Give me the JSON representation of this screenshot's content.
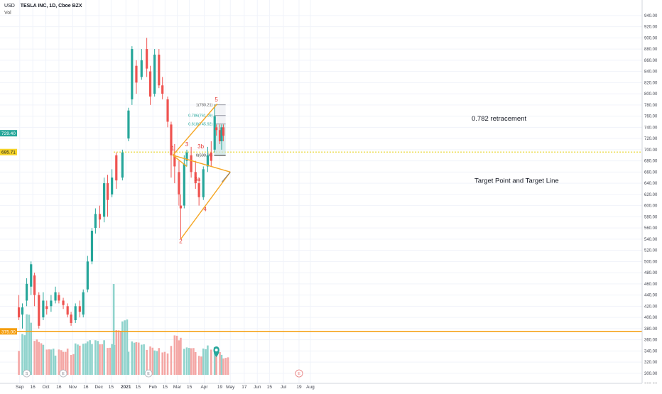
{
  "header": {
    "currency": "USD",
    "symbol": "TESLA INC, 1D, Cboe BZX",
    "vol_label": "Vol"
  },
  "annotations": {
    "retracement": "0.782 retracement",
    "target": "Target Point and Target Line",
    "fib_1": "1(780.21)",
    "fib_0786": "0.786(761.09)",
    "fib_0618": "0.618(745.92)",
    "fib_0": "0(690.00)",
    "wave_labels": [
      "1",
      "2",
      "3",
      "3a",
      "3b",
      "4",
      "5"
    ]
  },
  "price_tags": {
    "last": "729.40",
    "level": "695.71",
    "support": "375.00"
  },
  "event_markers": [
    "S",
    "E",
    "E",
    "E"
  ],
  "colors": {
    "up": "#26a69a",
    "down": "#ef5350",
    "vol_up": "#8fd3cc",
    "vol_down": "#f4a7a5",
    "pattern": "#f5a623",
    "support": "#f59d0b",
    "level_dotted": "#e6d31e",
    "fib_box": "#b2b5be",
    "fib_zone": "#a5ddd6"
  },
  "chart_data": {
    "type": "candlestick",
    "title": "TESLA INC, 1D, Cboe BZX",
    "ylabel": "USD",
    "y_ticks": [
      280,
      300,
      320,
      340,
      360,
      380,
      400,
      420,
      440,
      460,
      480,
      500,
      520,
      540,
      560,
      580,
      600,
      620,
      640,
      660,
      680,
      700,
      720,
      740,
      760,
      780,
      800,
      820,
      840,
      860,
      880,
      900,
      920,
      940
    ],
    "x_ticks": [
      "Sep",
      "16",
      "Oct",
      "16",
      "Nov",
      "16",
      "Dec",
      "15",
      "2021",
      "15",
      "Feb",
      "15",
      "Mar",
      "15",
      "Apr",
      "19",
      "May",
      "17",
      "Jun",
      "15",
      "Jul",
      "19",
      "Aug"
    ],
    "ylim": [
      280,
      955
    ],
    "candles": [
      {
        "date": "2020-08-31",
        "o": 418,
        "h": 440,
        "l": 395,
        "c": 400
      },
      {
        "date": "2020-09-04",
        "o": 405,
        "h": 425,
        "l": 380,
        "c": 418
      },
      {
        "date": "2020-09-09",
        "o": 430,
        "h": 470,
        "l": 420,
        "c": 460
      },
      {
        "date": "2020-09-14",
        "o": 455,
        "h": 500,
        "l": 440,
        "c": 495
      },
      {
        "date": "2020-09-18",
        "o": 475,
        "h": 480,
        "l": 420,
        "c": 440
      },
      {
        "date": "2020-09-23",
        "o": 440,
        "h": 445,
        "l": 380,
        "c": 385
      },
      {
        "date": "2020-09-28",
        "o": 400,
        "h": 445,
        "l": 395,
        "c": 430
      },
      {
        "date": "2020-10-02",
        "o": 420,
        "h": 430,
        "l": 405,
        "c": 415
      },
      {
        "date": "2020-10-07",
        "o": 420,
        "h": 440,
        "l": 410,
        "c": 430
      },
      {
        "date": "2020-10-12",
        "o": 430,
        "h": 455,
        "l": 425,
        "c": 445
      },
      {
        "date": "2020-10-16",
        "o": 440,
        "h": 445,
        "l": 425,
        "c": 430
      },
      {
        "date": "2020-10-21",
        "o": 430,
        "h": 435,
        "l": 415,
        "c": 422
      },
      {
        "date": "2020-10-26",
        "o": 420,
        "h": 425,
        "l": 400,
        "c": 405
      },
      {
        "date": "2020-10-30",
        "o": 405,
        "h": 410,
        "l": 385,
        "c": 390
      },
      {
        "date": "2020-11-04",
        "o": 395,
        "h": 425,
        "l": 390,
        "c": 420
      },
      {
        "date": "2020-11-09",
        "o": 420,
        "h": 430,
        "l": 400,
        "c": 410
      },
      {
        "date": "2020-11-13",
        "o": 405,
        "h": 450,
        "l": 400,
        "c": 445
      },
      {
        "date": "2020-11-18",
        "o": 450,
        "h": 510,
        "l": 445,
        "c": 500
      },
      {
        "date": "2020-11-23",
        "o": 500,
        "h": 560,
        "l": 495,
        "c": 555
      },
      {
        "date": "2020-11-27",
        "o": 560,
        "h": 595,
        "l": 550,
        "c": 585
      },
      {
        "date": "2020-12-02",
        "o": 585,
        "h": 600,
        "l": 560,
        "c": 575
      },
      {
        "date": "2020-12-07",
        "o": 580,
        "h": 650,
        "l": 570,
        "c": 640
      },
      {
        "date": "2020-12-11",
        "o": 640,
        "h": 655,
        "l": 580,
        "c": 610
      },
      {
        "date": "2020-12-16",
        "o": 620,
        "h": 665,
        "l": 615,
        "c": 650
      },
      {
        "date": "2020-12-21",
        "o": 690,
        "h": 695,
        "l": 630,
        "c": 645
      },
      {
        "date": "2020-12-28",
        "o": 650,
        "h": 700,
        "l": 645,
        "c": 695
      },
      {
        "date": "2021-01-04",
        "o": 720,
        "h": 775,
        "l": 715,
        "c": 770
      },
      {
        "date": "2021-01-08",
        "o": 790,
        "h": 885,
        "l": 780,
        "c": 880
      },
      {
        "date": "2021-01-13",
        "o": 850,
        "h": 860,
        "l": 800,
        "c": 820
      },
      {
        "date": "2021-01-19",
        "o": 830,
        "h": 880,
        "l": 825,
        "c": 860
      },
      {
        "date": "2021-01-25",
        "o": 880,
        "h": 900,
        "l": 830,
        "c": 845
      },
      {
        "date": "2021-01-29",
        "o": 840,
        "h": 850,
        "l": 780,
        "c": 795
      },
      {
        "date": "2021-02-03",
        "o": 800,
        "h": 880,
        "l": 795,
        "c": 870
      },
      {
        "date": "2021-02-08",
        "o": 870,
        "h": 880,
        "l": 810,
        "c": 815
      },
      {
        "date": "2021-02-12",
        "o": 815,
        "h": 830,
        "l": 790,
        "c": 800
      },
      {
        "date": "2021-02-18",
        "o": 790,
        "h": 795,
        "l": 740,
        "c": 750
      },
      {
        "date": "2021-02-22",
        "o": 745,
        "h": 750,
        "l": 650,
        "c": 690
      },
      {
        "date": "2021-02-26",
        "o": 690,
        "h": 710,
        "l": 640,
        "c": 670
      },
      {
        "date": "2021-03-03",
        "o": 660,
        "h": 680,
        "l": 600,
        "c": 620
      },
      {
        "date": "2021-03-05",
        "o": 600,
        "h": 620,
        "l": 540,
        "c": 595
      },
      {
        "date": "2021-03-09",
        "o": 600,
        "h": 690,
        "l": 595,
        "c": 675
      },
      {
        "date": "2021-03-12",
        "o": 680,
        "h": 700,
        "l": 670,
        "c": 695
      },
      {
        "date": "2021-03-17",
        "o": 690,
        "h": 705,
        "l": 650,
        "c": 660
      },
      {
        "date": "2021-03-22",
        "o": 660,
        "h": 680,
        "l": 630,
        "c": 640
      },
      {
        "date": "2021-03-26",
        "o": 640,
        "h": 650,
        "l": 600,
        "c": 615
      },
      {
        "date": "2021-03-31",
        "o": 615,
        "h": 670,
        "l": 610,
        "c": 665
      },
      {
        "date": "2021-04-05",
        "o": 670,
        "h": 705,
        "l": 660,
        "c": 690
      },
      {
        "date": "2021-04-09",
        "o": 695,
        "h": 715,
        "l": 670,
        "c": 680
      },
      {
        "date": "2021-04-13",
        "o": 700,
        "h": 780,
        "l": 695,
        "c": 760
      },
      {
        "date": "2021-04-15",
        "o": 740,
        "h": 745,
        "l": 725,
        "c": 735
      },
      {
        "date": "2021-04-19",
        "o": 735,
        "h": 745,
        "l": 710,
        "c": 715
      },
      {
        "date": "2021-04-21",
        "o": 715,
        "h": 745,
        "l": 700,
        "c": 740
      },
      {
        "date": "2021-04-23",
        "o": 740,
        "h": 745,
        "l": 715,
        "c": 725
      }
    ],
    "support_level": 375,
    "dotted_level": 695.71,
    "fib_levels": [
      {
        "ratio": "1",
        "price": 780.21
      },
      {
        "ratio": "0.786",
        "price": 761.09
      },
      {
        "ratio": "0.618",
        "price": 745.92
      },
      {
        "ratio": "0",
        "price": 690.0
      }
    ],
    "grid": true
  }
}
